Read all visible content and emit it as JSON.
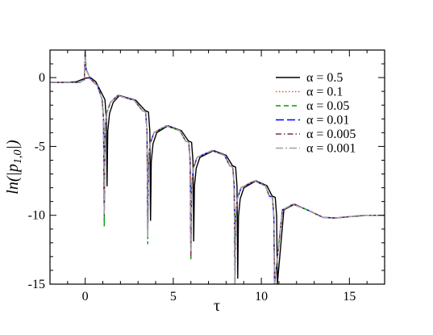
{
  "chart_data": {
    "type": "line",
    "title": "",
    "xlabel": "τ",
    "ylabel": "ln(|p_{1,0}|)",
    "ylabel_main": "ln(|p",
    "ylabel_sub": "1,0",
    "ylabel_close": "|)",
    "xlim": [
      -2,
      17
    ],
    "ylim": [
      -15,
      2
    ],
    "xticks": [
      0,
      5,
      10,
      15
    ],
    "yticks": [
      0,
      -5,
      -10,
      -15
    ],
    "xtick_labels": [
      "0",
      "5",
      "10",
      "15"
    ],
    "ytick_labels": [
      "0",
      "-5",
      "-10",
      "-15"
    ],
    "grid": false,
    "legend_position": "top-right",
    "series": [
      {
        "name": "α = 0.5",
        "color": "#000000",
        "dash": "solid",
        "phase": 0.16,
        "dip_depth": [
          -7.9,
          -10.4,
          -11.9,
          -14.6,
          -15.0
        ]
      },
      {
        "name": "α = 0.1",
        "color": "#ff4040",
        "dash": "dotted",
        "phase": 0.0,
        "dip_depth": [
          -10.0,
          -11.6,
          -13.0,
          -15.0,
          -15.0
        ]
      },
      {
        "name": "α = 0.05",
        "color": "#00a000",
        "dash": "dashed",
        "phase": 0.0,
        "dip_depth": [
          -10.8,
          -12.1,
          -13.2,
          -15.0,
          -15.0
        ]
      },
      {
        "name": "α = 0.01",
        "color": "#0000ff",
        "dash": "longdash",
        "phase": 0.0,
        "dip_depth": [
          -10.0,
          -11.6,
          -13.0,
          -15.0,
          -15.0
        ]
      },
      {
        "name": "α = 0.005",
        "color": "#7f2d4f",
        "dash": "dashdot",
        "phase": 0.0,
        "dip_depth": [
          -10.0,
          -11.6,
          -13.0,
          -15.0,
          -15.0
        ]
      },
      {
        "name": "α = 0.001",
        "color": "#a0a0a0",
        "dash": "dashdot2",
        "phase": 0.0,
        "dip_depth": [
          -10.0,
          -11.6,
          -12.6,
          -15.0,
          -15.0
        ]
      }
    ],
    "dips_x": [
      1.08,
      3.55,
      6.0,
      8.5,
      10.75
    ],
    "peaks": [
      {
        "x": 1.85,
        "y": -1.3
      },
      {
        "x": 4.6,
        "y": -3.5
      },
      {
        "x": 7.2,
        "y": -5.3
      },
      {
        "x": 9.6,
        "y": -7.5
      }
    ],
    "tail": [
      {
        "x": 10.75,
        "y": -15.0
      },
      {
        "x": 11.2,
        "y": -9.6
      },
      {
        "x": 11.8,
        "y": -9.2
      },
      {
        "x": 12.6,
        "y": -9.6
      },
      {
        "x": 13.5,
        "y": -10.15
      },
      {
        "x": 14.2,
        "y": -10.2
      },
      {
        "x": 15.0,
        "y": -10.1
      },
      {
        "x": 16.0,
        "y": -10.0
      },
      {
        "x": 17.0,
        "y": -10.0
      }
    ],
    "initial_level": -0.35
  }
}
